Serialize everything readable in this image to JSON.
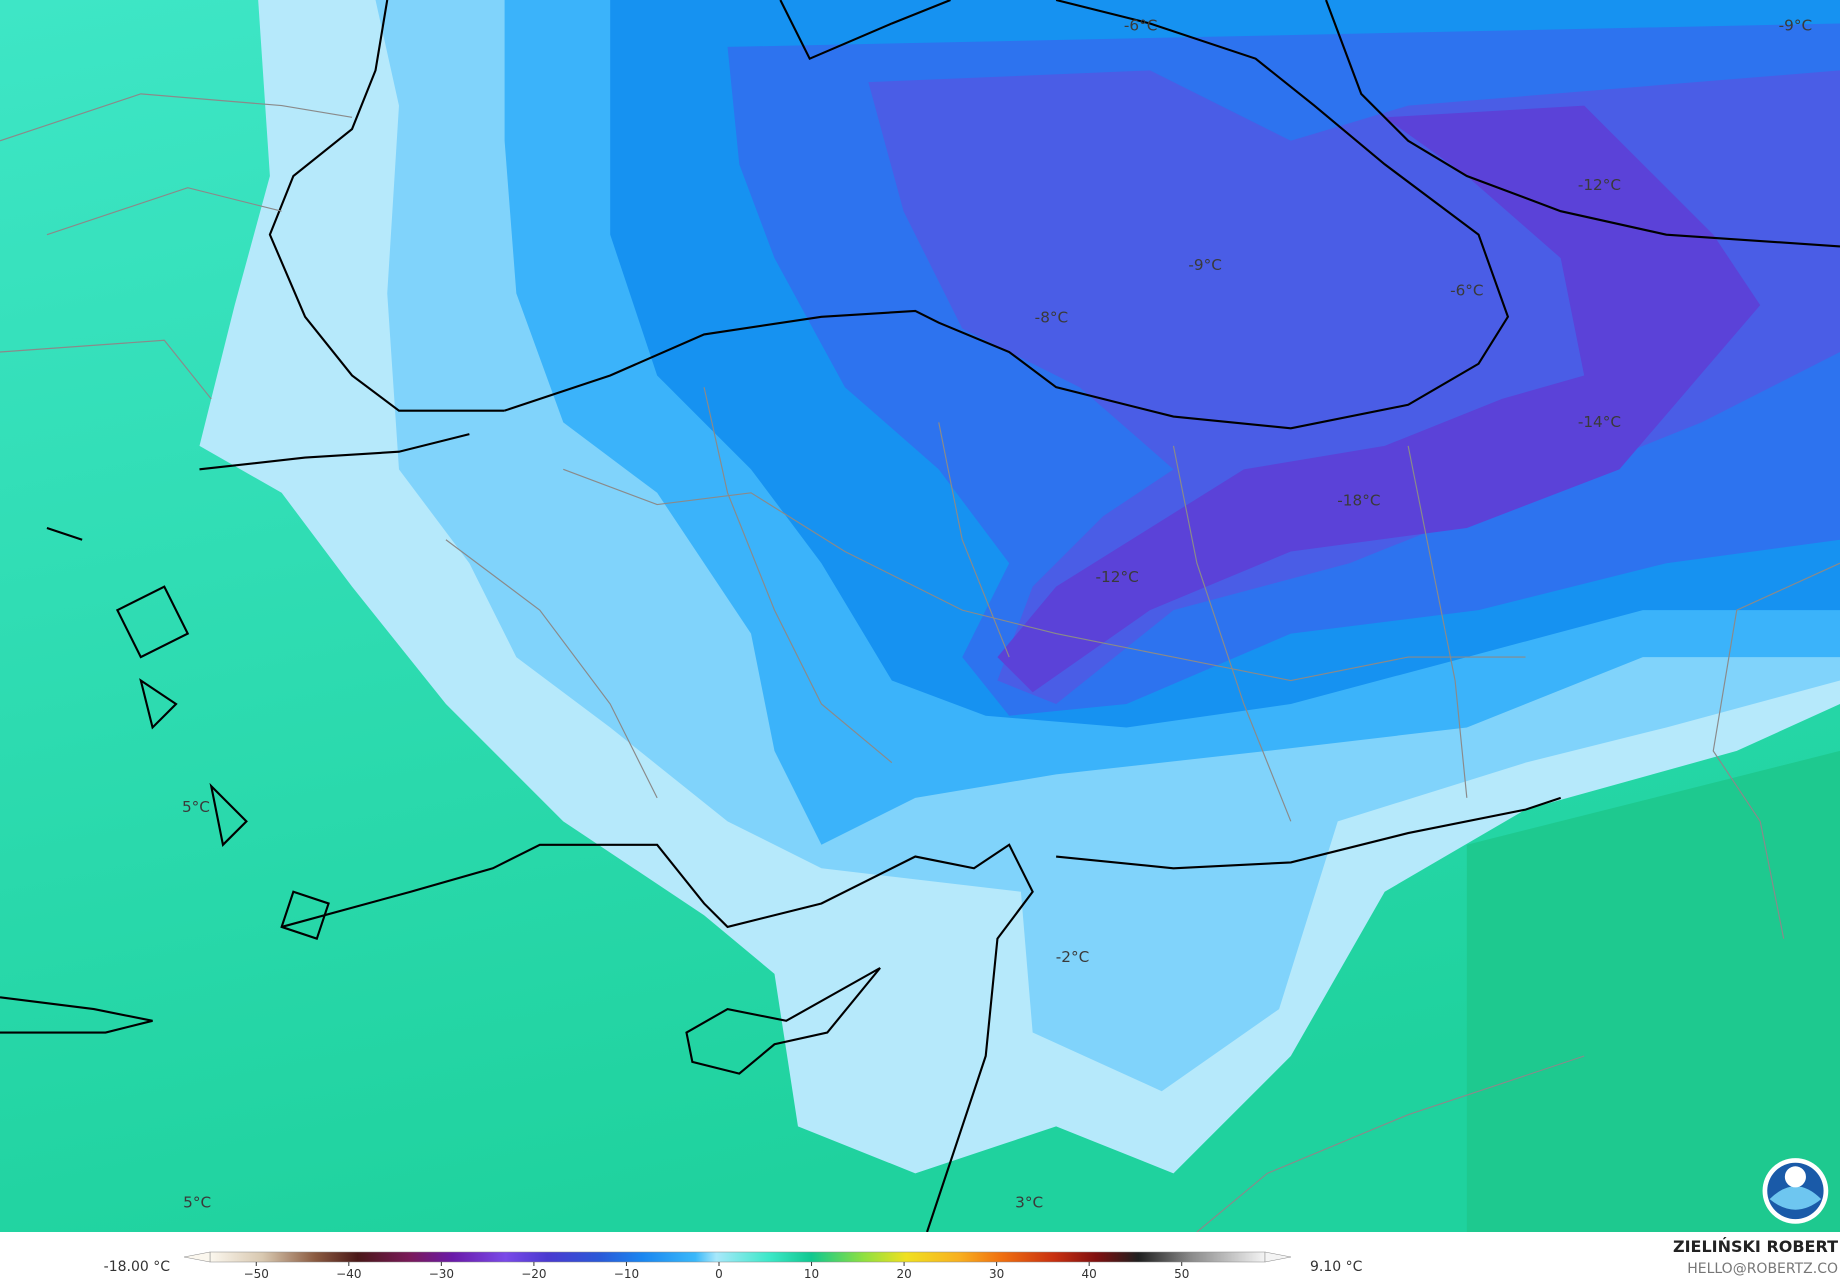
{
  "map": {
    "labels": [
      "-6°C",
      "-9°C",
      "-12°C",
      "-9°C",
      "-6°C",
      "-8°C",
      "-14°C",
      "-18°C",
      "-12°C",
      "5°C",
      "-2°C",
      "5°C",
      "3°C"
    ]
  },
  "colorbar": {
    "min_label": "-18.00 °C",
    "max_label": "9.10 °C",
    "xlim": [
      -55,
      59
    ],
    "ticks": [
      {
        "value": -50,
        "label": "−50"
      },
      {
        "value": -40,
        "label": "−40"
      },
      {
        "value": -30,
        "label": "−30"
      },
      {
        "value": -20,
        "label": "−20"
      },
      {
        "value": -10,
        "label": "−10"
      },
      0,
      10,
      20,
      30,
      40,
      50
    ]
  },
  "credit": {
    "name": "ZIELIŃSKI ROBERT",
    "email": "HELLO@ROBERTZ.CO"
  }
}
